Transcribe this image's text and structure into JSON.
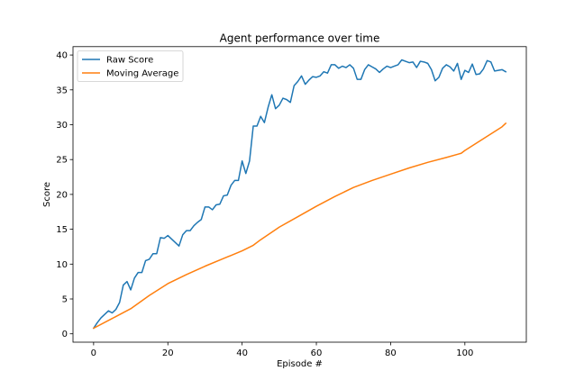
{
  "chart_data": {
    "type": "line",
    "title": "Agent performance over time",
    "xlabel": "Episode #",
    "ylabel": "Score",
    "xlim": [
      -5.55,
      116.55
    ],
    "ylim": [
      -1.2,
      41.2
    ],
    "xticks": [
      0,
      20,
      40,
      60,
      80,
      100
    ],
    "yticks": [
      0,
      5,
      10,
      15,
      20,
      25,
      30,
      35,
      40
    ],
    "grid": false,
    "legend_position": "top-left",
    "series": [
      {
        "name": "Raw Score",
        "color": "#1f77b4",
        "x": [
          0,
          1,
          2,
          3,
          4,
          5,
          6,
          7,
          8,
          9,
          10,
          11,
          12,
          13,
          14,
          15,
          16,
          17,
          18,
          19,
          20,
          21,
          22,
          23,
          24,
          25,
          26,
          27,
          28,
          29,
          30,
          31,
          32,
          33,
          34,
          35,
          36,
          37,
          38,
          39,
          40,
          41,
          42,
          43,
          44,
          45,
          46,
          47,
          48,
          49,
          50,
          51,
          52,
          53,
          54,
          55,
          56,
          57,
          58,
          59,
          60,
          61,
          62,
          63,
          64,
          65,
          66,
          67,
          68,
          69,
          70,
          71,
          72,
          73,
          74,
          75,
          76,
          77,
          78,
          79,
          80,
          81,
          82,
          83,
          84,
          85,
          86,
          87,
          88,
          89,
          90,
          91,
          92,
          93,
          94,
          95,
          96,
          97,
          98,
          99,
          100,
          101,
          102,
          103,
          104,
          105,
          106,
          107,
          108,
          109,
          110,
          111
        ],
        "y": [
          0.8,
          1.6,
          2.3,
          2.8,
          3.3,
          3.0,
          3.5,
          4.5,
          7.0,
          7.5,
          6.3,
          8.0,
          8.8,
          8.8,
          10.5,
          10.7,
          11.5,
          11.5,
          13.8,
          13.7,
          14.1,
          13.6,
          13.1,
          12.6,
          14.2,
          14.8,
          14.8,
          15.5,
          16.0,
          16.4,
          18.2,
          18.2,
          17.8,
          18.5,
          18.6,
          19.8,
          19.9,
          21.3,
          22.0,
          22.0,
          24.8,
          23.0,
          24.8,
          29.8,
          29.8,
          31.2,
          30.3,
          32.5,
          34.3,
          32.3,
          32.8,
          33.8,
          33.6,
          33.2,
          35.6,
          36.2,
          37.0,
          35.8,
          36.4,
          36.9,
          36.8,
          37.0,
          37.6,
          37.4,
          38.6,
          38.6,
          38.1,
          38.4,
          38.2,
          38.6,
          38.1,
          36.5,
          36.5,
          37.9,
          38.6,
          38.3,
          38.0,
          37.5,
          38.0,
          38.4,
          38.2,
          38.4,
          38.6,
          39.3,
          39.1,
          38.9,
          39.0,
          38.2,
          39.1,
          39.0,
          38.8,
          37.9,
          36.3,
          36.8,
          38.1,
          38.6,
          38.3,
          37.7,
          38.8,
          36.5,
          37.8,
          37.5,
          38.7,
          37.2,
          37.3,
          38.0,
          39.2,
          39.0,
          37.7,
          37.8,
          37.9,
          37.6
        ]
      },
      {
        "name": "Moving Average",
        "color": "#ff7f0e",
        "x": [
          0,
          5,
          10,
          15,
          20,
          25,
          30,
          35,
          40,
          43,
          45,
          50,
          55,
          60,
          65,
          70,
          75,
          80,
          85,
          90,
          95,
          99,
          100,
          105,
          110,
          111
        ],
        "y": [
          0.8,
          2.2,
          3.6,
          5.5,
          7.2,
          8.5,
          9.7,
          10.8,
          11.9,
          12.7,
          13.5,
          15.3,
          16.8,
          18.3,
          19.7,
          21.0,
          22.0,
          22.9,
          23.8,
          24.6,
          25.3,
          25.9,
          26.3,
          28.0,
          29.7,
          30.2
        ]
      }
    ]
  }
}
